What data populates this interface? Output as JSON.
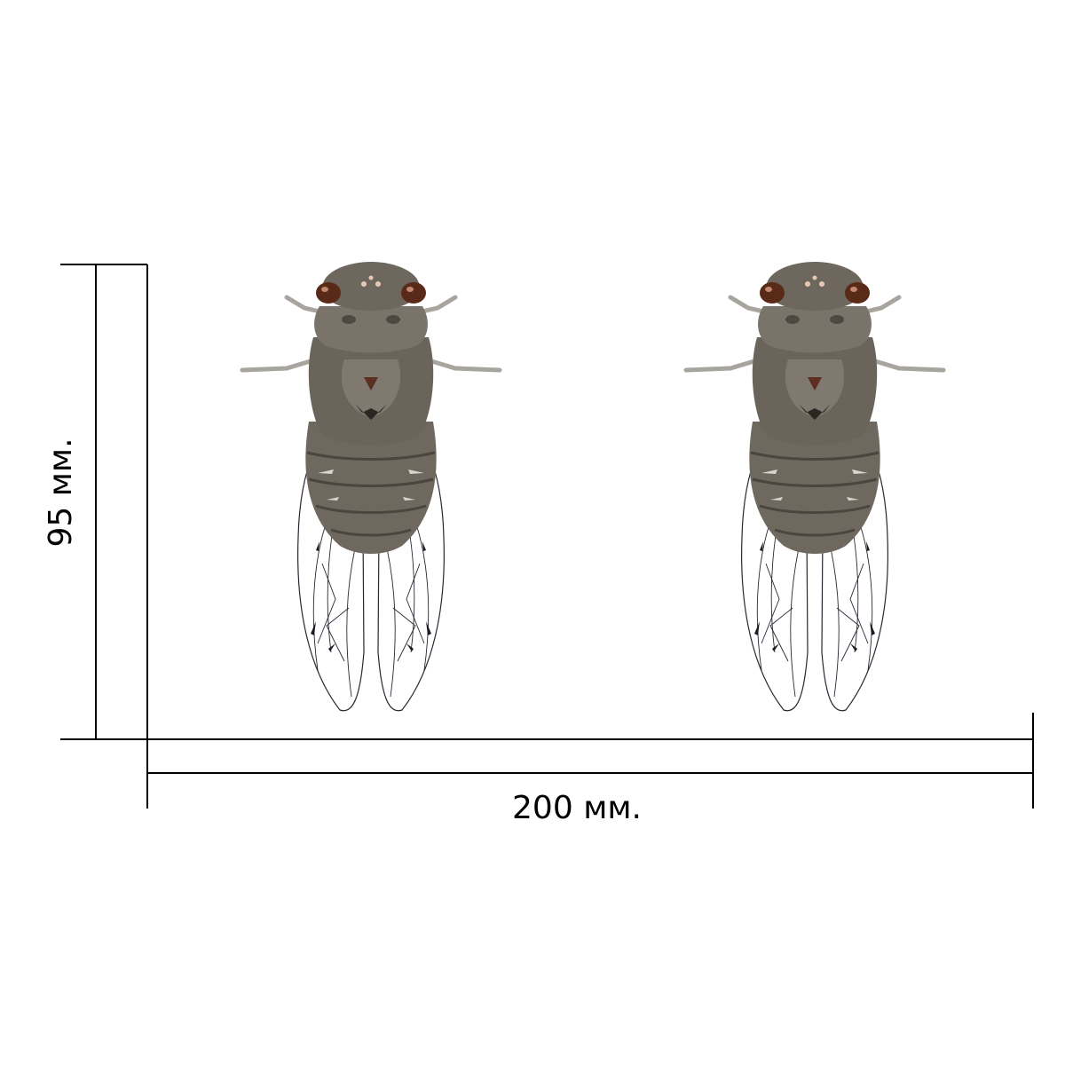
{
  "dimensions": {
    "width_label": "200 мм.",
    "height_label": "95 мм."
  },
  "artwork": {
    "subject": "cicada-decal",
    "count": 2
  },
  "colors": {
    "line": "#000000",
    "body_dark": "#5f5951",
    "body_mid": "#8a8278",
    "body_light": "#b9b3aa",
    "eye": "#5a2a18",
    "wing_vein": "#2b2633",
    "leg": "#a8a49e"
  }
}
